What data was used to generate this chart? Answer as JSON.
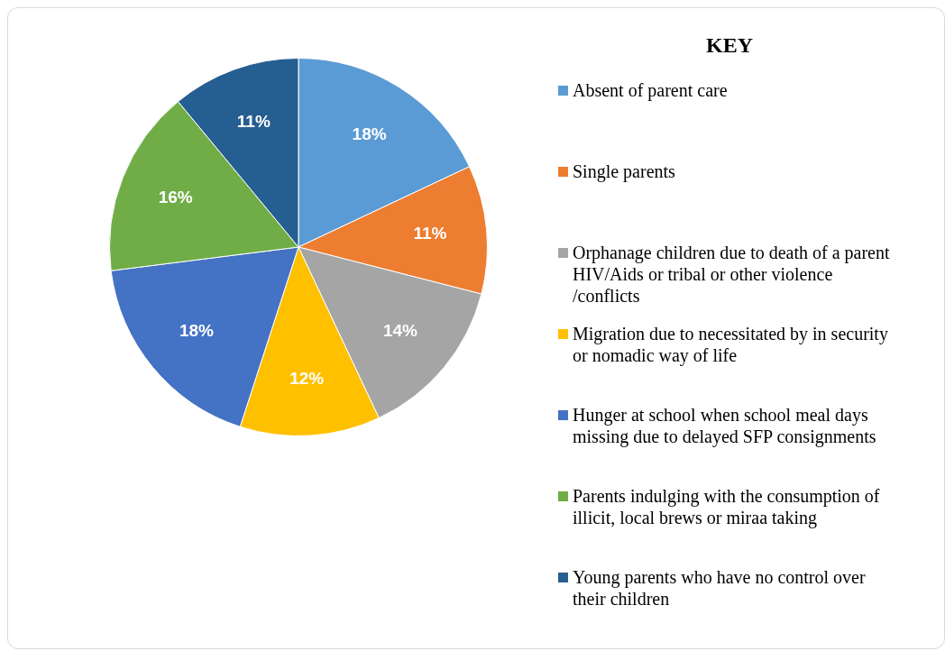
{
  "chart_data": {
    "type": "pie",
    "legend_title": "KEY",
    "legend": "right",
    "categories": [
      "Absent of parent care",
      "Single parents",
      "Orphanage children due to death of a parent HIV/Aids or tribal or other violence /conflicts",
      "Migration due to necessitated by in security or nomadic way of life",
      "Hunger at school when school meal days missing due to delayed SFP consignments",
      "Parents indulging with the consumption of illicit, local brews or miraa taking",
      "Young parents who have no control over their children"
    ],
    "values": [
      18,
      11,
      14,
      12,
      18,
      16,
      11
    ],
    "value_labels": [
      "18%",
      "11%",
      "14%",
      "12%",
      "18%",
      "16%",
      "11%"
    ],
    "colors": [
      "#5b9bd5",
      "#ed7d31",
      "#a5a5a5",
      "#ffc000",
      "#4472c4",
      "#70ad47",
      "#255e91"
    ]
  }
}
